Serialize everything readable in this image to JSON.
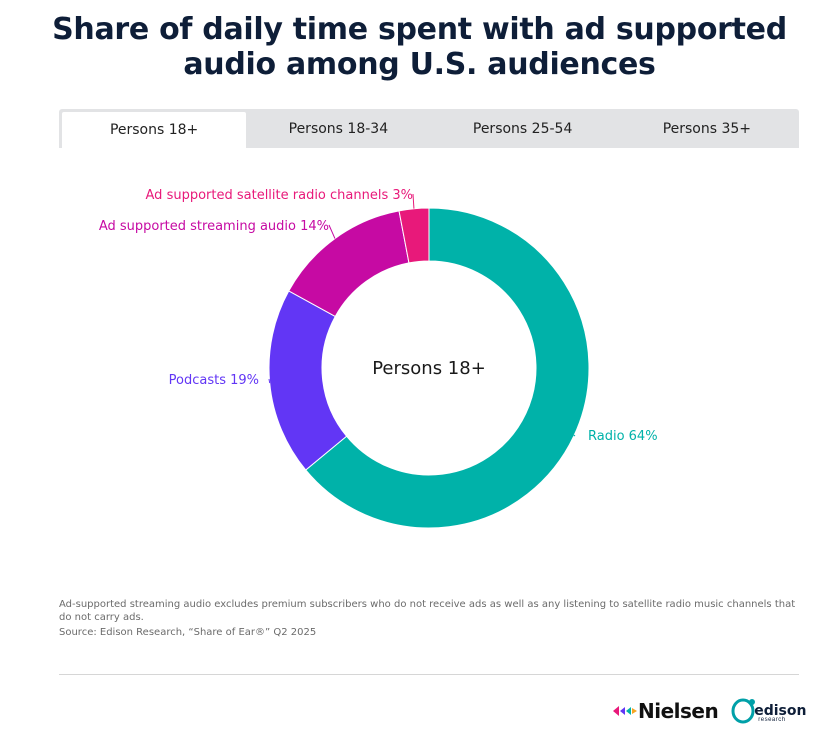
{
  "title_line1": "Share of daily time spent with ad supported",
  "title_line2": "audio among U.S. audiences",
  "tabs": [
    {
      "label": "Persons 18+",
      "active": true
    },
    {
      "label": "Persons 18-34",
      "active": false
    },
    {
      "label": "Persons 25-54",
      "active": false
    },
    {
      "label": "Persons 35+",
      "active": false
    }
  ],
  "chart_data": {
    "type": "pie",
    "style": "donut",
    "center_label": "Persons 18+",
    "slices": [
      {
        "label": "Radio",
        "value": 64,
        "display": "Radio 64%",
        "color": "#00b2a9"
      },
      {
        "label": "Podcasts",
        "value": 19,
        "display": "Podcasts 19%",
        "color": "#6236f5"
      },
      {
        "label": "Ad supported streaming audio",
        "value": 14,
        "display": "Ad supported streaming audio 14%",
        "color": "#c60aa3"
      },
      {
        "label": "Ad supported satellite radio channels",
        "value": 3,
        "display": "Ad supported satellite radio channels 3%",
        "color": "#e8197a"
      }
    ]
  },
  "notes": {
    "line1": "Ad-supported streaming audio excludes premium subscribers who do not receive ads as well as any listening to satellite radio music channels that do not carry ads.",
    "source": "Source: Edison Research, “Share of Ear®” Q2 2025"
  },
  "logos": {
    "nielsen": "Nielsen",
    "edison": "edison",
    "edison_sub": "research"
  }
}
